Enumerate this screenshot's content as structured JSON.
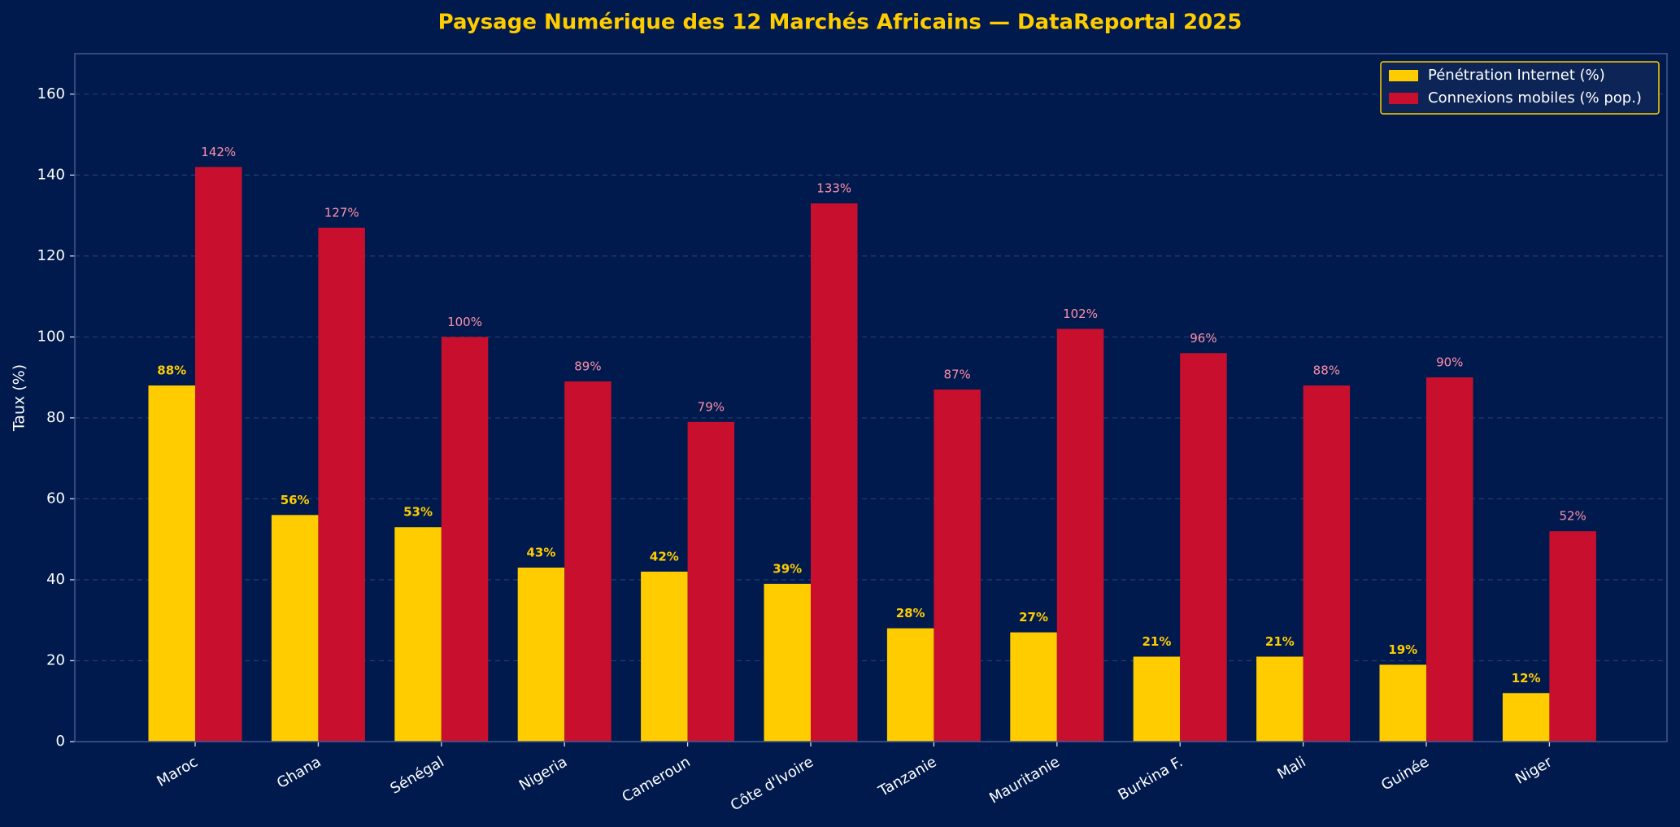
{
  "chart_data": {
    "type": "bar",
    "title": "Paysage Numérique des 12 Marchés Africains — DataReportal 2025",
    "y_label": "Taux (%)",
    "categories": [
      "Maroc",
      "Ghana",
      "Sénégal",
      "Nigeria",
      "Cameroun",
      "Côte d'Ivoire",
      "Tanzanie",
      "Mauritanie",
      "Burkina F.",
      "Mali",
      "Guinée",
      "Niger"
    ],
    "series": [
      {
        "name": "Pénétration Internet (%)",
        "color": "#ffcc00",
        "values": [
          88,
          56,
          53,
          43,
          42,
          39,
          28,
          27,
          21,
          21,
          19,
          12
        ],
        "value_labels": [
          "88%",
          "56%",
          "53%",
          "43%",
          "42%",
          "39%",
          "28%",
          "27%",
          "21%",
          "21%",
          "19%",
          "12%"
        ]
      },
      {
        "name": "Connexions mobiles (% pop.)",
        "color": "#c8102e",
        "values": [
          142,
          127,
          100,
          89,
          79,
          133,
          87,
          102,
          96,
          88,
          90,
          52
        ],
        "value_labels": [
          "142%",
          "127%",
          "100%",
          "89%",
          "79%",
          "133%",
          "87%",
          "102%",
          "96%",
          "88%",
          "90%",
          "52%"
        ]
      }
    ],
    "ylim": [
      0,
      170
    ],
    "yticks": [
      0,
      20,
      40,
      60,
      80,
      100,
      120,
      140,
      160
    ],
    "grid": true,
    "legend": "upper right"
  }
}
